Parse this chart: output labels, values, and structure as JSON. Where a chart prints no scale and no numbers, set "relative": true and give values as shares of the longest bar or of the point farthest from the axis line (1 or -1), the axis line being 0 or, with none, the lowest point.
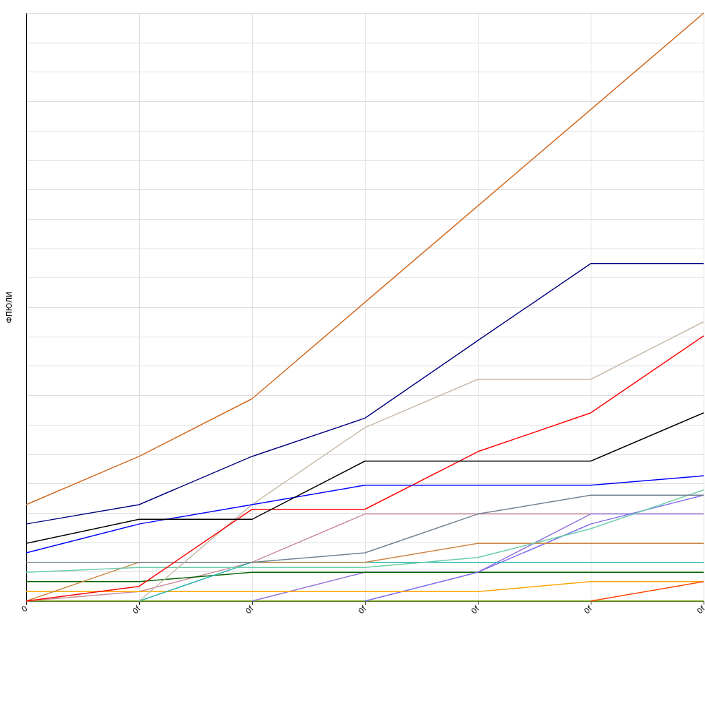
{
  "chart_data": {
    "type": "line",
    "relative": true,
    "ylabel": "ФПЮЛИ",
    "grid": true,
    "categories": [
      "0",
      "0f",
      "0f",
      "0f",
      "0f",
      "0f",
      "0f"
    ],
    "series": [
      {
        "color": "#669900",
        "values": [
          0,
          0,
          0,
          0,
          0,
          0,
          0
        ]
      },
      {
        "color": "#cc8899",
        "values": [
          0,
          0.016,
          0.066,
          0.148,
          0.148,
          0.148,
          null
        ]
      },
      {
        "color": "#9370db",
        "values": [
          null,
          null,
          0,
          0.049,
          0.049,
          0.148,
          0.148
        ]
      },
      {
        "color": "#006400",
        "values": [
          0.033,
          0.033,
          0.049,
          0.049,
          0.049,
          0.049,
          0.049
        ]
      },
      {
        "color": "#7b68ee",
        "values": [
          null,
          null,
          null,
          0,
          0.049,
          0.131,
          0.18
        ]
      },
      {
        "color": "#ffa500",
        "values": [
          0.016,
          0.016,
          0.016,
          0.016,
          0.016,
          0.033,
          0.033
        ]
      },
      {
        "color": "#ff4500",
        "values": [
          null,
          null,
          null,
          null,
          null,
          0,
          0.033
        ]
      },
      {
        "color": "#20b2aa",
        "values": [
          null,
          0,
          0.066,
          0.066,
          0.066,
          0.066,
          0.066
        ]
      },
      {
        "color": "#cd853f",
        "values": [
          0,
          0.066,
          0.066,
          0.066,
          0.098,
          0.098,
          0.098
        ]
      },
      {
        "color": "#66cdaa",
        "values": [
          0.049,
          0.057,
          0.057,
          0.057,
          0.074,
          0.123,
          0.189
        ]
      },
      {
        "color": "#708090",
        "values": [
          0.066,
          0.066,
          0.066,
          0.082,
          0.148,
          0.18,
          0.18
        ]
      },
      {
        "color": "#c8b8a8",
        "values": [
          null,
          0,
          0.164,
          0.295,
          0.377,
          0.377,
          0.475
        ]
      },
      {
        "color": "#ff0000",
        "values": [
          0,
          0.025,
          0.156,
          0.156,
          0.254,
          0.32,
          0.451
        ]
      },
      {
        "color": "#0000ff",
        "values": [
          0.082,
          0.131,
          0.164,
          0.197,
          0.197,
          0.197,
          0.213
        ]
      },
      {
        "color": "#000000",
        "values": [
          0.098,
          0.139,
          0.139,
          0.238,
          0.238,
          0.238,
          0.32
        ]
      },
      {
        "color": "#000080",
        "values": [
          0.131,
          0.164,
          0.246,
          0.311,
          0.443,
          0.574,
          0.574
        ]
      },
      {
        "color": "#d2691e",
        "values": [
          0.164,
          0.246,
          0.344,
          0.508,
          0.672,
          0.836,
          1
        ]
      }
    ]
  }
}
